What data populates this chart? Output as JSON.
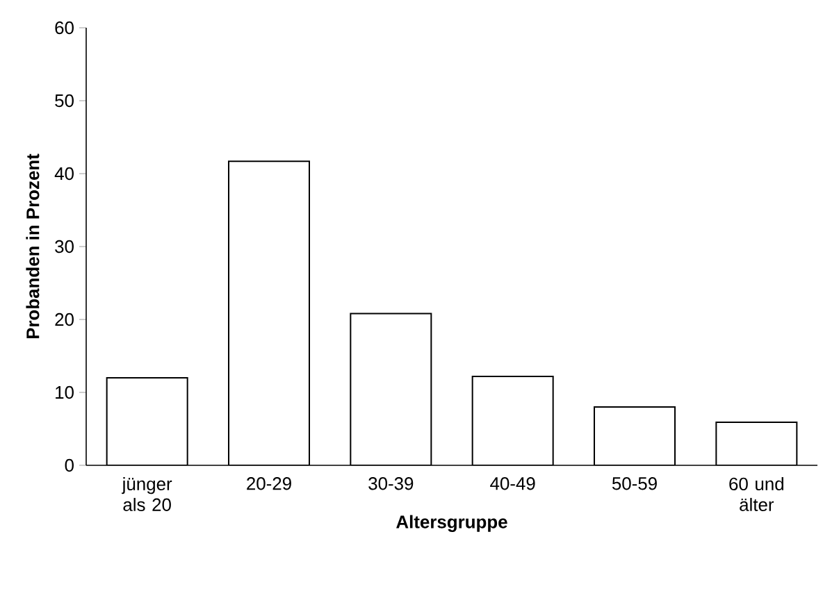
{
  "chart_data": {
    "type": "bar",
    "xlabel": "Altersgruppe",
    "ylabel": "Probanden in Prozent",
    "categories": [
      "jünger als 20",
      "20-29",
      "30-39",
      "40-49",
      "50-59",
      "60 und älter"
    ],
    "values": [
      12.0,
      41.7,
      20.8,
      12.2,
      8.0,
      5.9
    ],
    "color": "#ffffff",
    "ylim": [
      0,
      60
    ],
    "yticks": [
      0,
      10,
      20,
      30,
      40,
      50,
      60
    ]
  }
}
